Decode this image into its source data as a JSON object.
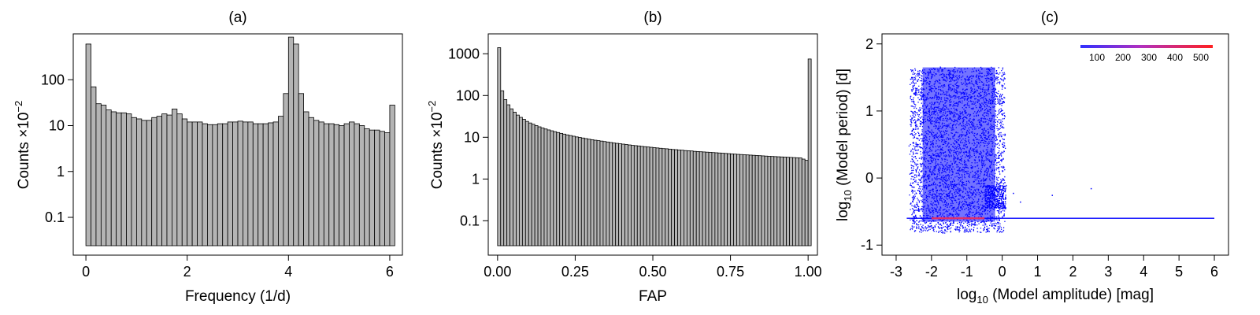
{
  "chart_data": [
    {
      "type": "bar",
      "title": "(a)",
      "xlabel": "Frequency (1/d)",
      "ylabel": "Counts ×10",
      "ylabel_exponent": "−2",
      "yscale": "log",
      "xlim": [
        -0.25,
        6.25
      ],
      "ylim": [
        0.015,
        1000
      ],
      "xticks": [
        0,
        2,
        4,
        6
      ],
      "yticks": [
        0.1,
        1,
        10,
        100
      ],
      "ytick_labels": [
        "0.1",
        "1",
        "10",
        "100"
      ],
      "bar_color": "#b4b4b4",
      "bins": {
        "start": 0,
        "width": 0.1
      },
      "values": [
        600,
        70,
        30,
        28,
        22,
        20,
        19,
        19,
        18,
        15,
        14,
        13,
        13,
        15,
        16,
        18,
        17,
        23,
        18,
        14,
        12,
        12,
        12,
        11,
        10.5,
        10.5,
        11,
        11,
        12,
        12,
        12.5,
        12,
        12,
        11,
        11,
        11,
        11.5,
        12,
        16,
        50,
        850,
        600,
        50,
        20,
        15,
        13,
        12,
        11,
        11,
        10.5,
        10,
        11,
        12,
        11,
        10,
        8.5,
        8,
        8,
        7.5,
        7,
        28
      ]
    },
    {
      "type": "bar",
      "title": "(b)",
      "xlabel": "FAP",
      "ylabel": "Counts ×10",
      "ylabel_exponent": "−2",
      "yscale": "log",
      "xlim": [
        -0.03,
        1.03
      ],
      "ylim": [
        0.015,
        3000
      ],
      "xticks": [
        0,
        0.25,
        0.5,
        0.75,
        1
      ],
      "xtick_labels": [
        "0.00",
        "0.25",
        "0.50",
        "0.75",
        "1.00"
      ],
      "yticks": [
        0.1,
        1,
        10,
        100,
        1000
      ],
      "ytick_labels": [
        "0.1",
        "1",
        "10",
        "100",
        "1000"
      ],
      "bar_color": "#b4b4b4",
      "bins": {
        "start": 0,
        "width": 0.01
      },
      "values": [
        1400,
        130,
        80,
        60,
        48,
        40,
        34,
        30,
        27,
        24,
        22,
        20.5,
        19,
        17.8,
        16.7,
        15.8,
        15,
        14.3,
        13.6,
        13,
        12.4,
        11.9,
        11.4,
        11,
        10.6,
        10.2,
        9.9,
        9.6,
        9.3,
        9,
        8.75,
        8.5,
        8.3,
        8.1,
        7.9,
        7.7,
        7.5,
        7.3,
        7.15,
        7,
        6.85,
        6.7,
        6.55,
        6.4,
        6.3,
        6.2,
        6.05,
        5.95,
        5.85,
        5.75,
        5.65,
        5.55,
        5.45,
        5.35,
        5.3,
        5.2,
        5.1,
        5.05,
        4.95,
        4.9,
        4.8,
        4.75,
        4.7,
        4.6,
        4.55,
        4.5,
        4.45,
        4.4,
        4.35,
        4.3,
        4.25,
        4.2,
        4.15,
        4.1,
        4.05,
        4,
        3.95,
        3.9,
        3.86,
        3.82,
        3.78,
        3.74,
        3.7,
        3.66,
        3.62,
        3.58,
        3.54,
        3.5,
        3.47,
        3.44,
        3.41,
        3.38,
        3.35,
        3.32,
        3.29,
        3.26,
        3.23,
        3.2,
        3.0,
        2.8,
        750
      ]
    },
    {
      "type": "heatmap",
      "title": "(c)",
      "xlabel_main": "log",
      "xlabel_sub": "10",
      "xlabel_rest": " (Model amplitude) [mag]",
      "ylabel_main": "log",
      "ylabel_sub": "10",
      "ylabel_rest": " (Model period) [d]",
      "xlim": [
        -3.4,
        6.4
      ],
      "ylim": [
        -1.15,
        2.15
      ],
      "xticks": [
        -3,
        -2,
        -1,
        0,
        1,
        2,
        3,
        4,
        5,
        6
      ],
      "xtick_labels": [
        "-3",
        "-2",
        "-1",
        "0",
        "1",
        "2",
        "3",
        "4",
        "5",
        "6"
      ],
      "yticks": [
        -1,
        0,
        1,
        2
      ],
      "ytick_labels": [
        "-1",
        "0",
        "1",
        "2"
      ],
      "colorbar": {
        "ticks": [
          "100",
          "200",
          "300",
          "400",
          "500"
        ],
        "colors": [
          "#3030ff",
          "#ff2020"
        ]
      },
      "point_color": "#0000ff",
      "high_density_color": "#e0306a",
      "distribution": {
        "main_band_amplitude_range": [
          -2.6,
          0.05
        ],
        "main_band_period_range": [
          -0.8,
          1.65
        ],
        "ridge_period": -0.6,
        "ridge_amplitude_range": [
          -2.7,
          6.0
        ],
        "ridge_dense_amplitude_range": [
          -2.0,
          -0.5
        ],
        "sparse_points": [
          [
            1.4,
            -0.25
          ],
          [
            2.5,
            -0.15
          ],
          [
            0.5,
            -0.35
          ],
          [
            0.3,
            -0.22
          ]
        ]
      }
    }
  ]
}
